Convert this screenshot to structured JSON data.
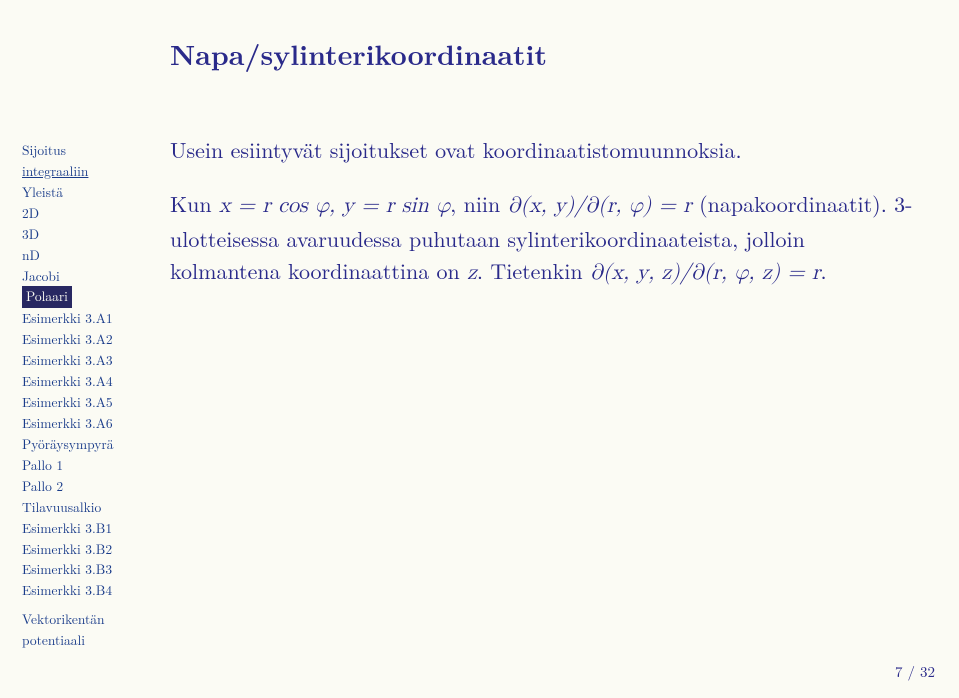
{
  "colors": {
    "page_bg": "#fbfbf4",
    "text_blue": "#2a2a8a",
    "sidebar_blue": "#1a3c8a",
    "highlight_bg": "#282862",
    "highlight_fg": "#fbfbf4"
  },
  "title": "Napa/sylinterikoordinaatit",
  "sidebar": {
    "items": [
      {
        "label": "Sijoitus",
        "style": "plain"
      },
      {
        "label": "integraaliin",
        "style": "underline"
      },
      {
        "label": "Yleistä",
        "style": "plain"
      },
      {
        "label": "2D",
        "style": "plain"
      },
      {
        "label": "3D",
        "style": "plain"
      },
      {
        "label": "nD",
        "style": "plain"
      },
      {
        "label": "Jacobi",
        "style": "plain"
      },
      {
        "label": "Polaari",
        "style": "highlight"
      },
      {
        "label": "Esimerkki 3.A1",
        "style": "plain"
      },
      {
        "label": "Esimerkki 3.A2",
        "style": "plain"
      },
      {
        "label": "Esimerkki 3.A3",
        "style": "plain"
      },
      {
        "label": "Esimerkki 3.A4",
        "style": "plain"
      },
      {
        "label": "Esimerkki 3.A5",
        "style": "plain"
      },
      {
        "label": "Esimerkki 3.A6",
        "style": "plain"
      },
      {
        "label": "Pyöräysympyrä",
        "style": "plain"
      },
      {
        "label": "Pallo 1",
        "style": "plain"
      },
      {
        "label": "Pallo 2",
        "style": "plain"
      },
      {
        "label": "Tilavuusalkio",
        "style": "plain"
      },
      {
        "label": "Esimerkki 3.B1",
        "style": "plain"
      },
      {
        "label": "Esimerkki 3.B2",
        "style": "plain"
      },
      {
        "label": "Esimerkki 3.B3",
        "style": "plain"
      },
      {
        "label": "Esimerkki 3.B4",
        "style": "plain"
      },
      {
        "label": "Vektorikentän",
        "style": "plain"
      },
      {
        "label": "potentiaali",
        "style": "plain"
      }
    ]
  },
  "body": {
    "p1": "Usein esiintyvät sijoitukset ovat koordinaatistomuunnoksia.",
    "p2_pre": "Kun ",
    "p2_math1": "x = r cos φ, y = r sin φ",
    "p2_mid": ", niin ",
    "p2_math2": "∂(x, y)/∂(r, φ) = r",
    "p2_post1": " (napakoordinaatit). 3-ulotteisessa avaruudessa puhutaan sylinterikoordinaateista, jolloin kolmantena koordinaattina on ",
    "p2_math3": "z",
    "p2_post2": ". Tietenkin ",
    "p2_math4": "∂(x, y, z)/∂(r, φ, z) = r",
    "p2_post3": "."
  },
  "footer": "7 / 32"
}
